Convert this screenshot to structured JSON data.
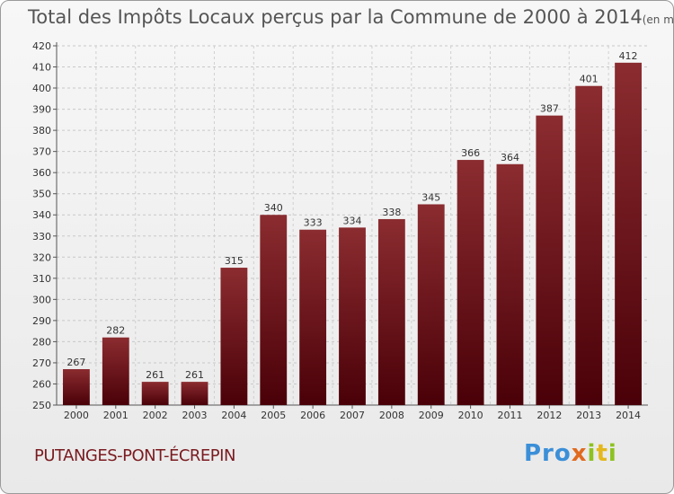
{
  "header": {
    "title": "Total des Impôts Locaux perçus par la Commune de 2000 à 2014",
    "unit": "(en milliers d'€)"
  },
  "footer": {
    "commune": "PUTANGES-PONT-ÉCREPIN",
    "brand": "Proxiti"
  },
  "colors": {
    "bar_top": "#8b2c30",
    "bar_bottom": "#4a0008",
    "brand_blue": "#3b8fd8",
    "brand_orange": "#e06a1f",
    "brand_green": "#8dc21f",
    "brand_yellow": "#e4b81d"
  },
  "chart_data": {
    "type": "bar",
    "title": "Total des Impôts Locaux perçus par la Commune de 2000 à 2014",
    "xlabel": "",
    "ylabel": "",
    "categories": [
      "2000",
      "2001",
      "2002",
      "2003",
      "2004",
      "2005",
      "2006",
      "2007",
      "2008",
      "2009",
      "2010",
      "2011",
      "2012",
      "2013",
      "2014"
    ],
    "values": [
      267,
      282,
      261,
      261,
      315,
      340,
      333,
      334,
      338,
      345,
      366,
      364,
      387,
      401,
      412
    ],
    "ylim": [
      250,
      420
    ],
    "yticks": [
      250,
      260,
      270,
      280,
      290,
      300,
      310,
      320,
      330,
      340,
      350,
      360,
      370,
      380,
      390,
      400,
      410,
      420
    ],
    "grid": true,
    "legend": "none"
  }
}
